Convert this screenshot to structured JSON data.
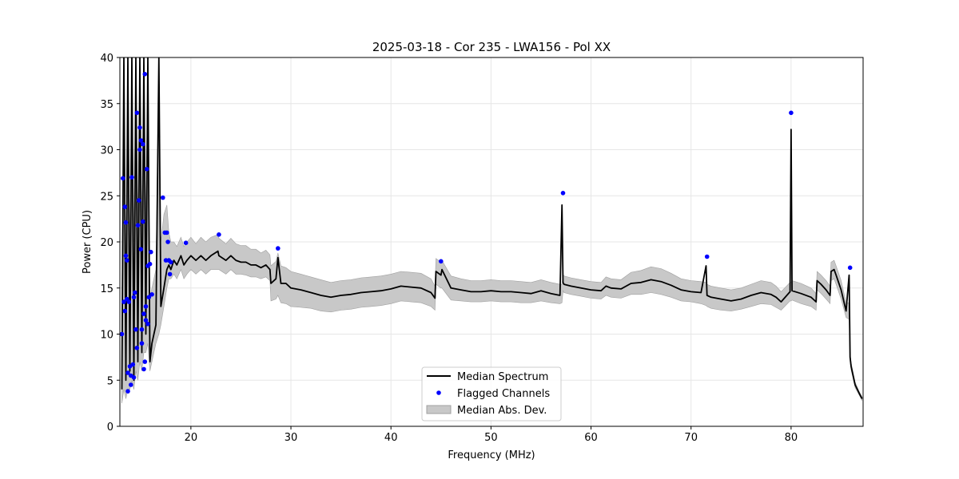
{
  "chart_data": {
    "type": "line",
    "title": "2025-03-18 - Cor 235 - LWA156 - Pol XX",
    "xlabel": "Frequency (MHz)",
    "ylabel": "Power (CPU)",
    "xlim": [
      12.9,
      87.2
    ],
    "ylim": [
      0,
      40
    ],
    "xticks": [
      "20",
      "30",
      "40",
      "50",
      "60",
      "70",
      "80"
    ],
    "xtick_values": [
      20,
      30,
      40,
      50,
      60,
      70,
      80
    ],
    "yticks": [
      "0",
      "5",
      "10",
      "15",
      "20",
      "25",
      "30",
      "35",
      "40"
    ],
    "ytick_values": [
      0,
      5,
      10,
      15,
      20,
      25,
      30,
      35,
      40
    ],
    "grid": true,
    "legend_position": "lower-center",
    "legend": {
      "median": "Median Spectrum",
      "flagged": "Flagged Channels",
      "mad": "Median Abs. Dev."
    },
    "colors": {
      "median": "#000000",
      "flagged": "#0000ff",
      "mad": "#c8c8c8",
      "mad_edge": "#a0a0a0"
    },
    "series": [
      {
        "name": "Median Spectrum",
        "x": [
          13.1,
          13.3,
          13.5,
          13.7,
          13.9,
          14.1,
          14.3,
          14.5,
          14.7,
          14.9,
          15.1,
          15.3,
          15.5,
          15.7,
          15.9,
          16.1,
          16.3,
          16.5,
          16.8,
          17.0,
          17.3,
          17.6,
          17.8,
          18.0,
          18.3,
          18.6,
          19.0,
          19.3,
          19.6,
          20.0,
          20.5,
          21.0,
          21.5,
          22.0,
          22.7,
          22.8,
          23.5,
          24.0,
          24.5,
          25.0,
          25.5,
          26.0,
          26.5,
          27.0,
          27.5,
          27.9,
          28.0,
          28.5,
          28.7,
          29.0,
          29.5,
          30.0,
          31.0,
          32.0,
          33.0,
          34.0,
          35.0,
          36.0,
          37.0,
          38.0,
          39.0,
          40.0,
          41.0,
          42.0,
          43.0,
          44.0,
          44.4,
          44.5,
          45.0,
          45.1,
          46.0,
          47.0,
          48.0,
          49.0,
          50.0,
          51.0,
          52.0,
          53.0,
          54.0,
          55.0,
          56.0,
          56.9,
          57.1,
          57.2,
          57.3,
          58.0,
          59.0,
          60.0,
          61.0,
          61.5,
          62.0,
          63.0,
          64.0,
          65.0,
          66.0,
          67.0,
          68.0,
          69.0,
          70.0,
          71.0,
          71.5,
          71.6,
          72.0,
          73.0,
          74.0,
          75.0,
          76.0,
          77.0,
          78.0,
          78.5,
          79.0,
          79.9,
          80.0,
          80.1,
          81.0,
          82.0,
          82.5,
          82.6,
          83.0,
          83.5,
          83.9,
          84.0,
          84.3,
          84.5,
          85.0,
          85.5,
          85.8,
          85.9,
          86.0,
          86.4,
          86.8,
          87.1
        ],
        "values": [
          4,
          40,
          5,
          40,
          6,
          40,
          5,
          40,
          7,
          40,
          8,
          40,
          10,
          40,
          7,
          9,
          10,
          11,
          40,
          13,
          15,
          17,
          17.5,
          17,
          18,
          17.5,
          18.5,
          17.5,
          18,
          18.5,
          18,
          18.5,
          18,
          18.5,
          19,
          18.5,
          18,
          18.5,
          18,
          17.8,
          17.8,
          17.5,
          17.5,
          17.2,
          17.5,
          17,
          15.5,
          16,
          18.3,
          15.5,
          15.5,
          15,
          14.8,
          14.5,
          14.2,
          14.0,
          14.2,
          14.3,
          14.5,
          14.6,
          14.7,
          14.9,
          15.2,
          15.1,
          15.0,
          14.5,
          13.9,
          16.8,
          16.4,
          17.0,
          15.0,
          14.8,
          14.6,
          14.6,
          14.7,
          14.6,
          14.6,
          14.5,
          14.4,
          14.7,
          14.4,
          14.2,
          24.0,
          15.6,
          15.4,
          15.2,
          15.0,
          14.8,
          14.7,
          15.2,
          15.0,
          14.9,
          15.5,
          15.6,
          15.9,
          15.7,
          15.3,
          14.8,
          14.6,
          14.5,
          17.4,
          14.2,
          14.0,
          13.8,
          13.6,
          13.8,
          14.2,
          14.5,
          14.3,
          14.0,
          13.5,
          14.6,
          32.2,
          14.7,
          14.4,
          14.0,
          13.5,
          15.8,
          15.4,
          14.8,
          14.2,
          16.8,
          17.0,
          16.4,
          14.8,
          12.5,
          16.4,
          7.5,
          6.5,
          4.5,
          3.6,
          3.0
        ],
        "mad_lower": [
          2.5,
          4,
          3,
          4,
          4,
          5,
          4,
          6,
          5,
          7,
          6,
          8,
          8,
          9,
          6,
          7,
          8,
          9,
          10,
          11,
          13,
          15,
          16,
          16,
          16.5,
          16,
          17,
          16,
          16.5,
          17,
          16.5,
          17,
          16.5,
          17,
          17,
          17,
          16.5,
          17,
          16.5,
          16.5,
          16.4,
          16.2,
          16.2,
          16,
          16.2,
          15.8,
          13.6,
          13.8,
          14.2,
          13.4,
          13.3,
          13.0,
          12.9,
          12.8,
          12.5,
          12.4,
          12.6,
          12.7,
          12.9,
          13.0,
          13.1,
          13.3,
          13.6,
          13.5,
          13.4,
          13.0,
          12.6,
          15.4,
          15.0,
          15.0,
          13.7,
          13.6,
          13.5,
          13.5,
          13.6,
          13.5,
          13.5,
          13.4,
          13.4,
          13.6,
          13.4,
          13.3,
          13.4,
          14.7,
          14.5,
          14.3,
          14.1,
          13.9,
          13.8,
          14.2,
          14.0,
          13.9,
          14.3,
          14.3,
          14.5,
          14.3,
          14.0,
          13.6,
          13.5,
          13.3,
          13.1,
          13.0,
          12.8,
          12.6,
          12.5,
          12.7,
          13.0,
          13.3,
          13.2,
          12.9,
          12.6,
          13.6,
          13.6,
          13.7,
          13.3,
          13.0,
          12.6,
          14.8,
          14.4,
          13.8,
          13.3,
          15.8,
          16.0,
          15.4,
          13.8,
          11.8,
          11.6,
          7.0,
          6.1,
          4.2,
          3.4,
          2.8
        ],
        "mad_upper": [
          14,
          40,
          16,
          40,
          18,
          40,
          20,
          40,
          22,
          40,
          22,
          40,
          22,
          40,
          14,
          15,
          16,
          17,
          40,
          20,
          23,
          24,
          21,
          20,
          20,
          19.5,
          20.5,
          19.5,
          20,
          20.5,
          19.8,
          20.5,
          20,
          20.5,
          20.8,
          20.4,
          19.8,
          20.4,
          19.8,
          19.6,
          19.6,
          19.2,
          19.2,
          18.8,
          19.1,
          18.6,
          17.4,
          17.9,
          18.8,
          17.4,
          17.2,
          16.8,
          16.5,
          16.2,
          15.9,
          15.6,
          15.8,
          15.9,
          16.1,
          16.2,
          16.3,
          16.5,
          16.8,
          16.7,
          16.6,
          16.0,
          15.2,
          18.2,
          17.8,
          18.0,
          16.3,
          16.0,
          15.8,
          15.8,
          15.9,
          15.8,
          15.8,
          15.7,
          15.6,
          15.9,
          15.6,
          15.4,
          15.4,
          16.5,
          16.3,
          16.1,
          15.9,
          15.7,
          15.6,
          16.2,
          16.0,
          15.9,
          16.7,
          16.9,
          17.3,
          17.1,
          16.6,
          16.0,
          15.8,
          15.7,
          15.6,
          15.4,
          15.2,
          15.0,
          14.8,
          15.0,
          15.4,
          15.8,
          15.6,
          15.2,
          14.6,
          15.6,
          15.6,
          15.8,
          15.5,
          15.0,
          14.4,
          16.8,
          16.4,
          15.8,
          15.2,
          17.8,
          18.0,
          17.4,
          15.8,
          13.4,
          13.4,
          8.0,
          6.9,
          4.8,
          3.8,
          3.2
        ]
      },
      {
        "name": "Flagged Channels",
        "x": [
          13.1,
          13.2,
          13.3,
          13.4,
          13.4,
          13.5,
          13.5,
          13.6,
          13.6,
          13.7,
          13.7,
          13.8,
          13.9,
          14.0,
          14.0,
          14.1,
          14.2,
          14.3,
          14.3,
          14.4,
          14.5,
          14.6,
          14.6,
          14.7,
          14.8,
          14.9,
          14.9,
          15.0,
          15.0,
          15.1,
          15.1,
          15.2,
          15.2,
          15.3,
          15.3,
          15.4,
          15.4,
          15.5,
          15.5,
          15.6,
          15.7,
          15.7,
          15.8,
          15.9,
          16.0,
          16.1,
          17.2,
          17.4,
          17.5,
          17.6,
          17.7,
          17.8,
          17.9,
          18.0,
          19.5,
          22.8,
          28.7,
          45.0,
          57.2,
          71.6,
          80.0,
          85.9
        ],
        "values": [
          10.0,
          26.9,
          13.5,
          23.8,
          12.5,
          22.1,
          18.5,
          13.8,
          18.0,
          5.8,
          3.8,
          13.5,
          6.5,
          5.5,
          4.5,
          27.0,
          6.7,
          14.0,
          5.3,
          14.5,
          10.5,
          34.0,
          8.5,
          21.8,
          24.5,
          30.0,
          32.4,
          19.2,
          31.0,
          9.0,
          10.5,
          30.6,
          22.2,
          12.2,
          6.2,
          38.2,
          7.0,
          11.5,
          13.0,
          27.9,
          11.1,
          17.4,
          14.0,
          17.6,
          18.9,
          14.3,
          24.8,
          21.0,
          18.0,
          21.0,
          20.0,
          18.0,
          16.5,
          17.8,
          19.9,
          20.8,
          19.3,
          17.9,
          25.3,
          18.4,
          34.0,
          17.2
        ]
      }
    ]
  }
}
